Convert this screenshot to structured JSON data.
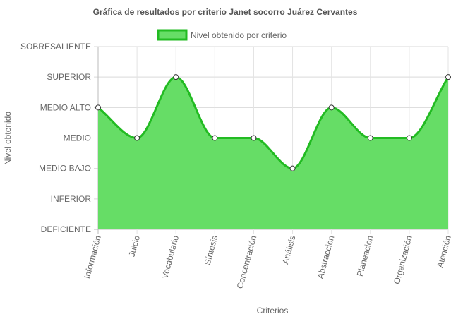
{
  "chart_data": {
    "type": "area",
    "title": "Gráfica de resultados por criterio Janet socorro Juárez Cervantes",
    "xlabel": "Criterios",
    "ylabel": "Nivel obtenido",
    "levels": [
      "DEFICIENTE",
      "INFERIOR",
      "MEDIO BAJO",
      "MEDIO",
      "MEDIO ALTO",
      "SUPERIOR",
      "SOBRESALIENTE"
    ],
    "ylim": [
      0,
      6
    ],
    "categories": [
      "Información",
      "Juicio",
      "Vocabulario",
      "Síntesis",
      "Concentración",
      "Análisis",
      "Abstracción",
      "Planeación",
      "Organización",
      "Atención"
    ],
    "series": [
      {
        "name": "Nivel obtenido por criterio",
        "values": [
          4,
          3,
          5,
          3,
          3,
          2,
          4,
          3,
          3,
          5
        ],
        "fill_color": "#66dd66",
        "line_color": "#22bb22"
      }
    ],
    "grid": true,
    "legend_position": "top"
  }
}
